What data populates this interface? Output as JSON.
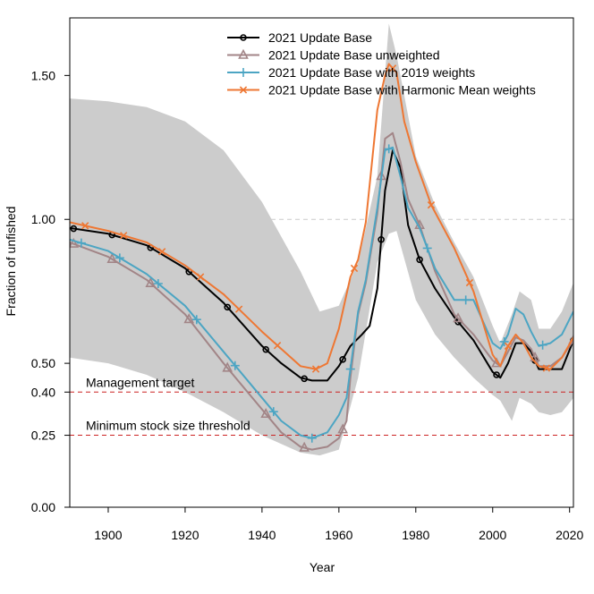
{
  "chart_data": {
    "type": "line",
    "xlabel": "Year",
    "ylabel": "Fraction of unfished",
    "xlim": [
      1890,
      2021
    ],
    "ylim": [
      0,
      1.7
    ],
    "x_ticks": [
      {
        "value": 1900,
        "label": "1900"
      },
      {
        "value": 1920,
        "label": "1920"
      },
      {
        "value": 1940,
        "label": "1940"
      },
      {
        "value": 1960,
        "label": "1960"
      },
      {
        "value": 1980,
        "label": "1980"
      },
      {
        "value": 2000,
        "label": "2000"
      },
      {
        "value": 2020,
        "label": "2020"
      }
    ],
    "y_ticks": [
      {
        "value": 0,
        "label": "0.00"
      },
      {
        "value": 0.25,
        "label": "0.25"
      },
      {
        "value": 0.4,
        "label": "0.40"
      },
      {
        "value": 0.5,
        "label": "0.50"
      },
      {
        "value": 1.0,
        "label": "1.00"
      },
      {
        "value": 1.5,
        "label": "1.50"
      }
    ],
    "reference_lines": [
      {
        "name": "Management target",
        "y": 0.4,
        "color": "#cc2222"
      },
      {
        "name": "Minimum stock size threshold",
        "y": 0.25,
        "color": "#cc2222"
      },
      {
        "name": "",
        "y": 1.0,
        "color": "#cccccc"
      }
    ],
    "interval_band": {
      "color": "#cccccc",
      "x": [
        1890,
        1900,
        1910,
        1920,
        1930,
        1940,
        1950,
        1955,
        1960,
        1965,
        1970,
        1973,
        1975,
        1980,
        1985,
        1990,
        1995,
        2000,
        2002,
        2005,
        2007,
        2010,
        2012,
        2015,
        2018,
        2021
      ],
      "upper": [
        1.42,
        1.41,
        1.39,
        1.34,
        1.24,
        1.06,
        0.82,
        0.68,
        0.7,
        0.85,
        1.15,
        1.68,
        1.57,
        1.22,
        1.05,
        0.92,
        0.8,
        0.63,
        0.57,
        0.67,
        0.75,
        0.72,
        0.62,
        0.62,
        0.68,
        0.78
      ],
      "lower": [
        0.52,
        0.5,
        0.46,
        0.4,
        0.33,
        0.25,
        0.19,
        0.18,
        0.2,
        0.45,
        0.85,
        0.95,
        0.96,
        0.72,
        0.6,
        0.52,
        0.45,
        0.39,
        0.37,
        0.3,
        0.38,
        0.36,
        0.33,
        0.32,
        0.33,
        0.38
      ]
    },
    "series": [
      {
        "name": "2021 Update Base",
        "color": "#000000",
        "marker": "circle",
        "x": [
          1890,
          1900,
          1910,
          1920,
          1930,
          1940,
          1945,
          1950,
          1953,
          1957,
          1960,
          1963,
          1966,
          1968,
          1970,
          1972,
          1974,
          1976,
          1978,
          1981,
          1985,
          1990,
          1995,
          2000,
          2002,
          2004,
          2006,
          2008,
          2010,
          2012,
          2015,
          2018,
          2021
        ],
        "y": [
          0.97,
          0.95,
          0.91,
          0.83,
          0.71,
          0.56,
          0.5,
          0.45,
          0.44,
          0.44,
          0.49,
          0.56,
          0.6,
          0.63,
          0.76,
          1.1,
          1.24,
          1.18,
          0.98,
          0.86,
          0.76,
          0.66,
          0.58,
          0.47,
          0.45,
          0.5,
          0.57,
          0.57,
          0.54,
          0.48,
          0.48,
          0.48,
          0.58
        ]
      },
      {
        "name": "2021 Update Base unweighted",
        "color": "#a28587",
        "marker": "triangle",
        "x": [
          1890,
          1900,
          1910,
          1920,
          1930,
          1940,
          1945,
          1950,
          1953,
          1957,
          1960,
          1962,
          1963,
          1965,
          1967,
          1970,
          1972,
          1974,
          1976,
          1978,
          1981,
          1985,
          1990,
          1995,
          2000,
          2002,
          2004,
          2006,
          2008,
          2010,
          2012,
          2015,
          2018,
          2021
        ],
        "y": [
          0.92,
          0.87,
          0.79,
          0.67,
          0.5,
          0.34,
          0.26,
          0.21,
          0.2,
          0.21,
          0.24,
          0.3,
          0.45,
          0.67,
          0.78,
          1.02,
          1.28,
          1.3,
          1.2,
          1.07,
          0.98,
          0.82,
          0.67,
          0.6,
          0.51,
          0.49,
          0.54,
          0.59,
          0.58,
          0.55,
          0.49,
          0.49,
          0.52,
          0.58
        ]
      },
      {
        "name": "2021 Update Base with 2019 weights",
        "color": "#4ca5c3",
        "marker": "plus",
        "x": [
          1890,
          1900,
          1910,
          1920,
          1930,
          1940,
          1945,
          1950,
          1953,
          1957,
          1960,
          1962,
          1963,
          1965,
          1967,
          1970,
          1972,
          1974,
          1976,
          1978,
          1981,
          1985,
          1990,
          1995,
          2000,
          2002,
          2004,
          2006,
          2008,
          2010,
          2012,
          2015,
          2018,
          2021
        ],
        "y": [
          0.93,
          0.89,
          0.81,
          0.7,
          0.54,
          0.38,
          0.3,
          0.25,
          0.24,
          0.26,
          0.32,
          0.38,
          0.48,
          0.68,
          0.79,
          1.04,
          1.24,
          1.25,
          1.15,
          1.04,
          0.97,
          0.83,
          0.72,
          0.72,
          0.57,
          0.55,
          0.6,
          0.69,
          0.67,
          0.61,
          0.56,
          0.57,
          0.6,
          0.68
        ]
      },
      {
        "name": "2021 Update Base with Harmonic Mean weights",
        "color": "#ee7733",
        "marker": "cross",
        "x": [
          1890,
          1900,
          1910,
          1920,
          1930,
          1940,
          1945,
          1950,
          1954,
          1957,
          1960,
          1963,
          1965,
          1967,
          1970,
          1972,
          1973,
          1975,
          1977,
          1980,
          1984,
          1990,
          1995,
          2000,
          2002,
          2004,
          2006,
          2008,
          2010,
          2012,
          2015,
          2018,
          2021
        ],
        "y": [
          0.99,
          0.96,
          0.92,
          0.84,
          0.74,
          0.61,
          0.55,
          0.49,
          0.48,
          0.5,
          0.62,
          0.8,
          0.86,
          0.99,
          1.38,
          1.5,
          1.54,
          1.51,
          1.34,
          1.2,
          1.05,
          0.9,
          0.75,
          0.53,
          0.49,
          0.56,
          0.6,
          0.57,
          0.52,
          0.49,
          0.48,
          0.52,
          0.59
        ]
      }
    ]
  }
}
